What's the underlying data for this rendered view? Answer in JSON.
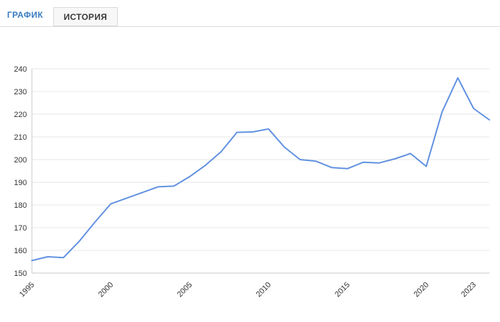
{
  "tabs": {
    "chart_label": "ГРАФИК",
    "history_label": "ИСТОРИЯ"
  },
  "colors": {
    "tab_active_text": "#3a7cc1",
    "tab_inactive_text": "#3a3a3a",
    "line": "#6191e0",
    "grid": "#e7e7e7",
    "axis": "#c9c9c9",
    "tick_text": "#333333"
  },
  "chart_data": {
    "type": "line",
    "x": [
      1995,
      1996,
      1997,
      1998,
      1999,
      2000,
      2001,
      2002,
      2003,
      2004,
      2005,
      2006,
      2007,
      2008,
      2009,
      2010,
      2011,
      2012,
      2013,
      2014,
      2015,
      2016,
      2017,
      2018,
      2019,
      2020,
      2021,
      2022,
      2023,
      2024
    ],
    "values": [
      155.5,
      157.2,
      156.8,
      164.0,
      172.5,
      180.5,
      183.0,
      185.5,
      188.0,
      188.3,
      192.5,
      197.5,
      203.5,
      212.0,
      212.2,
      213.5,
      205.5,
      200.0,
      199.3,
      196.5,
      196.0,
      198.8,
      198.5,
      200.3,
      202.7,
      197.0,
      221.0,
      236.0,
      222.5,
      217.5
    ],
    "x_ticks": [
      {
        "label": "1995",
        "index": 0
      },
      {
        "label": "2000",
        "index": 5
      },
      {
        "label": "2005",
        "index": 10
      },
      {
        "label": "2010",
        "index": 15
      },
      {
        "label": "2015",
        "index": 20
      },
      {
        "label": "2020",
        "index": 25
      },
      {
        "label": "2023",
        "index": 28
      }
    ],
    "y_ticks": [
      150,
      160,
      170,
      180,
      190,
      200,
      210,
      220,
      230,
      240
    ],
    "ylim": [
      150,
      240
    ],
    "title": "",
    "xlabel": "",
    "ylabel": "",
    "grid": true,
    "legend": "none"
  }
}
